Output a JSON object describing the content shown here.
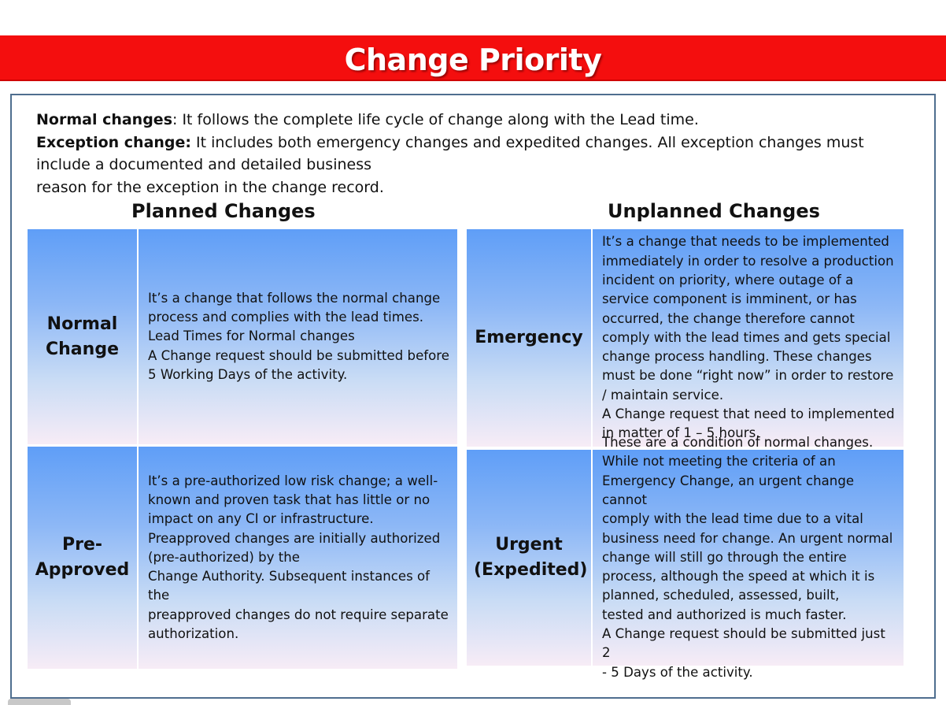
{
  "title": "Change Priority",
  "intro": {
    "normal_term": "Normal changes",
    "normal_text": ": It follows the complete life cycle of change along with the Lead time.",
    "exception_term": "Exception change:",
    "exception_text": " It includes both emergency changes and expedited changes. All exception changes must include a documented and detailed business",
    "exception_text_2": "reason for the exception in the change record."
  },
  "planned": {
    "heading": "Planned Changes",
    "rows": [
      {
        "label": "Normal Change",
        "description": "It’s a change that follows the normal change\nprocess and complies with the lead times.\nLead Times for Normal changes\nA Change request should be submitted before\n5 Working Days of the activity."
      },
      {
        "label": "Pre-Approved",
        "description": "It’s a pre-authorized low risk change; a well-\nknown and proven task that has little or no\nimpact on any CI or infrastructure.\nPreapproved changes are initially authorized\n(pre-authorized) by the\nChange Authority. Subsequent instances of the\npreapproved changes do not require separate\nauthorization."
      }
    ]
  },
  "unplanned": {
    "heading": "Unplanned Changes",
    "rows": [
      {
        "label": "Emergency",
        "description": "It’s a change that needs to be implemented\nimmediately in order to resolve a production\nincident on priority, where outage of a\nservice component is imminent, or has\noccurred, the change therefore cannot\ncomply with the lead times and gets special\nchange process handling. These changes\nmust be done “right now” in order to restore\n/ maintain service.\nA Change request that need to implemented\nin matter of 1 – 5 hours."
      },
      {
        "label": "Urgent (Expedited)",
        "description": "These are a condition of normal changes.\nWhile not meeting the criteria of an\nEmergency Change, an urgent change cannot\ncomply with the lead time due to a vital\nbusiness need for change. An urgent normal\nchange will still go through the entire\nprocess, although the speed at which it is\nplanned, scheduled, assessed, built,\ntested and authorized is much faster.\nA Change request should be submitted just 2\n- 5 Days of the activity."
      }
    ]
  },
  "colors": {
    "title_bar": "#f40e0e",
    "frame_border": "#4f6e8f",
    "cell_gradient_top": "#5f9ef7",
    "cell_gradient_bottom": "#f7ecf6"
  }
}
